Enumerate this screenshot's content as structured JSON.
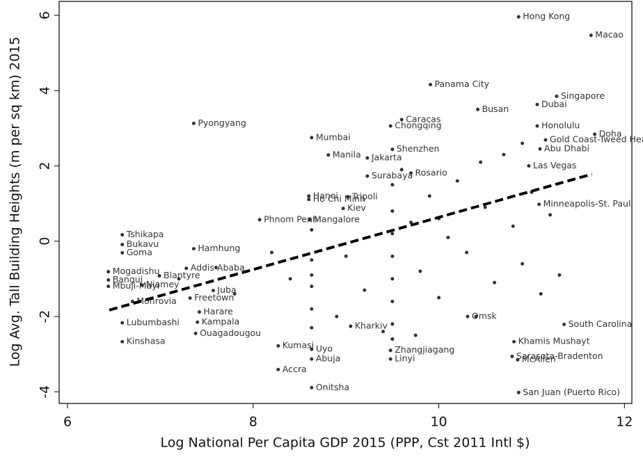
{
  "chart_data": {
    "type": "scatter",
    "x_label": "Log National Per Capita GDP 2015 (PPP, Cst 2011 Intl $)",
    "y_label": "Log Avg. Tall Building Heights (m per sq km) 2015",
    "xlim": [
      5.91,
      12.08
    ],
    "ylim": [
      -4.31,
      6.37
    ],
    "xticks": [
      6,
      8,
      10,
      12
    ],
    "yticks": [
      -4,
      -2,
      0,
      2,
      4,
      6
    ],
    "color": "#333333",
    "x": [
      10.86,
      11.64,
      9.91,
      11.27,
      11.06,
      10.42,
      11.06,
      11.68,
      7.36,
      8.63,
      8.81,
      9.48,
      9.6,
      8.6,
      8.6,
      9.02,
      8.97,
      8.61,
      8.07,
      6.59,
      6.59,
      6.59,
      7.36,
      6.44,
      6.8,
      6.7,
      7.57,
      6.59,
      6.59,
      7.4,
      7.38,
      8.27,
      8.27,
      8.63,
      8.63,
      8.63,
      10.86,
      10.85,
      10.81,
      11.35,
      9.23,
      9.23,
      9.5,
      11.08,
      11.15,
      11.09,
      10.97,
      9.7,
      10.79,
      9.48,
      9.48,
      10.31,
      7.32,
      6.99,
      6.44,
      7.42,
      7.28,
      6.44,
      9.05,
      8.63,
      8.63,
      8.63,
      8.63,
      8.63,
      8.63,
      9.5,
      9.5,
      9.5,
      9.5,
      9.5,
      9.5,
      9.5,
      9.5,
      9.6,
      9.7,
      9.8,
      9.9,
      10.0,
      10.1,
      10.2,
      10.3,
      10.4,
      10.5,
      10.6,
      10.7,
      10.8,
      10.9,
      11.0,
      11.1,
      11.2,
      11.3,
      9.2,
      9.0,
      8.9,
      8.4,
      8.2,
      7.8,
      7.6,
      7.2,
      9.4,
      10.0,
      9.75,
      10.45,
      10.9
    ],
    "values": [
      5.96,
      5.47,
      4.16,
      3.85,
      3.63,
      3.5,
      3.06,
      2.84,
      3.13,
      2.75,
      2.29,
      3.06,
      3.23,
      1.2,
      1.11,
      1.18,
      0.87,
      0.57,
      0.57,
      0.17,
      -0.09,
      -0.31,
      -0.2,
      -1.03,
      -1.16,
      -1.6,
      -1.31,
      -2.17,
      -2.67,
      -2.15,
      -2.45,
      -2.78,
      -3.41,
      -3.89,
      -2.87,
      -3.13,
      -4.02,
      -3.15,
      -2.67,
      -2.21,
      1.73,
      2.21,
      2.44,
      0.98,
      2.69,
      2.45,
      2.0,
      1.81,
      -3.06,
      -2.9,
      -3.13,
      -2.0,
      -1.51,
      -0.92,
      -0.81,
      -1.88,
      -0.72,
      -1.2,
      -2.26,
      -0.5,
      -1.2,
      -1.8,
      -2.3,
      0.3,
      -0.9,
      1.5,
      0.8,
      0.2,
      -0.4,
      -1.0,
      -1.6,
      -2.2,
      -2.6,
      1.9,
      0.5,
      -0.8,
      1.2,
      -1.5,
      0.1,
      1.6,
      -0.3,
      -2.0,
      0.9,
      -1.1,
      2.3,
      0.4,
      -0.6,
      1.3,
      -1.4,
      0.7,
      -0.9,
      -1.3,
      -0.4,
      -2.0,
      -1.0,
      -0.3,
      -1.4,
      -0.7,
      -1.0,
      -2.4,
      0.6,
      -2.5,
      2.1,
      2.6
    ],
    "labels": [
      "Hong Kong",
      "Macao",
      "Panama City",
      "Singapore",
      "Dubai",
      "Busan",
      "Honolulu",
      "Doha",
      "Pyongyang",
      "Mumbai",
      "Manila",
      "Chongqing",
      "Caracas",
      "Hanoi",
      "Ho Chi Minh",
      "Tripoli",
      "Kiev",
      "Mangalore",
      "Phnom Penh",
      "Tshikapa",
      "Bukavu",
      "Goma",
      "Hamhung",
      "Bangui",
      "Niamey",
      "Monrovia",
      "Juba",
      "Lubumbashi",
      "Kinshasa",
      "Kampala",
      "Ouagadougou",
      "Kumasi",
      "Accra",
      "Onitsha",
      "Uyo",
      "Abuja",
      "San Juan (Puerto Rico)",
      "McAllen",
      "Khamis Mushayt",
      "South Carolina",
      "Surabaya",
      "Jakarta",
      "Shenzhen",
      "Minneapolis-St. Paul",
      "Gold Coast-Tweed Heads",
      "Abu Dhabi",
      "Las Vegas",
      "Rosario",
      "Sarasota-Bradenton",
      "Zhangjiagang",
      "Linyi",
      "Omsk",
      "Freetown",
      "Blantyre",
      "Mogadishu",
      "Harare",
      "Addis Ababa",
      "Mbuji-Mayi",
      "Kharkiv",
      null,
      null,
      null,
      null,
      null,
      null,
      null,
      null,
      null,
      null,
      null,
      null,
      null,
      null,
      null,
      null,
      null,
      null,
      null,
      null,
      null,
      null,
      null,
      null,
      null,
      null,
      null,
      null,
      null,
      null,
      null,
      null,
      null,
      null,
      null,
      null,
      null,
      null,
      null,
      null,
      null,
      null,
      null,
      null,
      null
    ],
    "fit": {
      "x": [
        6.45,
        11.65
      ],
      "values": [
        -1.83,
        1.78
      ],
      "color": "#000000"
    }
  }
}
